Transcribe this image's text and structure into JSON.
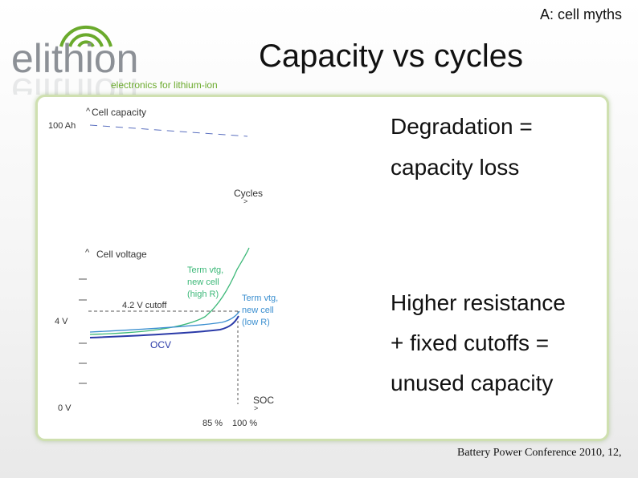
{
  "header": {
    "corner_tag": "A: cell myths",
    "title": "Capacity vs cycles"
  },
  "logo": {
    "wordmark": "elithion",
    "tagline": "electronics for lithium-ion"
  },
  "capacity_chart": {
    "y_axis_label": "Cell capacity",
    "y_tick": "100 Ah",
    "x_axis_label": "Cycles"
  },
  "voltage_chart": {
    "y_axis_label": "Cell voltage",
    "cutoff_label": "4.2 V cutoff",
    "y_tick_4v": "4 V",
    "y_tick_0v": "0 V",
    "x_axis_label": "SOC",
    "x_tick_85": "85 %",
    "x_tick_100": "100 %",
    "series": [
      {
        "name": "Term vtg, new cell (high R)",
        "line1": "Term vtg,",
        "line2": "new cell",
        "line3": "(high R)",
        "color": "#3cb878"
      },
      {
        "name": "Term vtg, new cell (low R)",
        "line1": "Term vtg,",
        "line2": "new cell",
        "line3": "(low R)",
        "color": "#3b8fd0"
      },
      {
        "name": "OCV",
        "line1": "OCV",
        "color": "#2a3aa8"
      }
    ]
  },
  "bullets": {
    "b1_line1": "Degradation =",
    "b1_line2": "capacity loss",
    "b2_line1": "Higher resistance",
    "b2_line2": "+ fixed cutoffs =",
    "b2_line3": "unused capacity"
  },
  "footer": {
    "citation": "Battery Power Conference 2010, 12,"
  },
  "colors": {
    "panel_border": "#cfe0b0",
    "logo_grey": "#8c9096",
    "logo_green": "#6aaa2c"
  }
}
